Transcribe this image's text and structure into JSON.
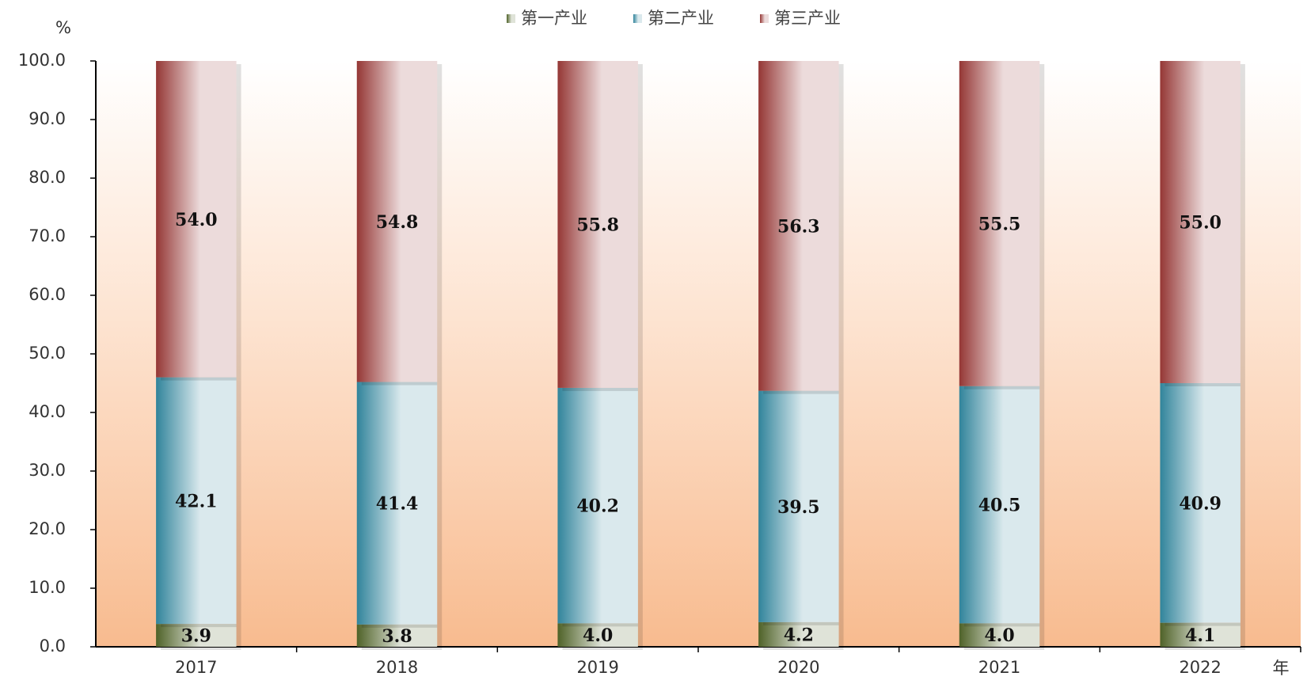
{
  "chart_data": {
    "type": "stacked_bar",
    "y_label": "%",
    "x_label": "年",
    "categories": [
      "2017",
      "2018",
      "2019",
      "2020",
      "2021",
      "2022"
    ],
    "series": [
      {
        "name": "第一产业",
        "color": "#4f6228",
        "values": [
          3.9,
          3.8,
          4.0,
          4.2,
          4.0,
          4.1
        ],
        "value_labels": [
          "3.9",
          "3.8",
          "4.0",
          "4.2",
          "4.0",
          "4.1"
        ]
      },
      {
        "name": "第二产业",
        "color": "#31849b",
        "values": [
          42.1,
          41.4,
          40.2,
          39.5,
          40.5,
          40.9
        ],
        "value_labels": [
          "42.1",
          "41.4",
          "40.2",
          "39.5",
          "40.5",
          "40.9"
        ]
      },
      {
        "name": "第三产业",
        "color": "#953735",
        "values": [
          54.0,
          54.8,
          55.8,
          56.3,
          55.5,
          55.0
        ],
        "value_labels": [
          "54.0",
          "54.8",
          "55.8",
          "56.3",
          "55.5",
          "55.0"
        ]
      }
    ],
    "ylim": [
      0,
      100
    ],
    "yticks": [
      {
        "value": 0,
        "label": "0.0"
      },
      {
        "value": 10,
        "label": "10.0"
      },
      {
        "value": 20,
        "label": "20.0"
      },
      {
        "value": 30,
        "label": "30.0"
      },
      {
        "value": 40,
        "label": "40.0"
      },
      {
        "value": 50,
        "label": "50.0"
      },
      {
        "value": 60,
        "label": "60.0"
      },
      {
        "value": 70,
        "label": "70.0"
      },
      {
        "value": 80,
        "label": "80.0"
      },
      {
        "value": 90,
        "label": "90.0"
      },
      {
        "value": 100,
        "label": "100.0"
      }
    ],
    "legend": "top"
  }
}
